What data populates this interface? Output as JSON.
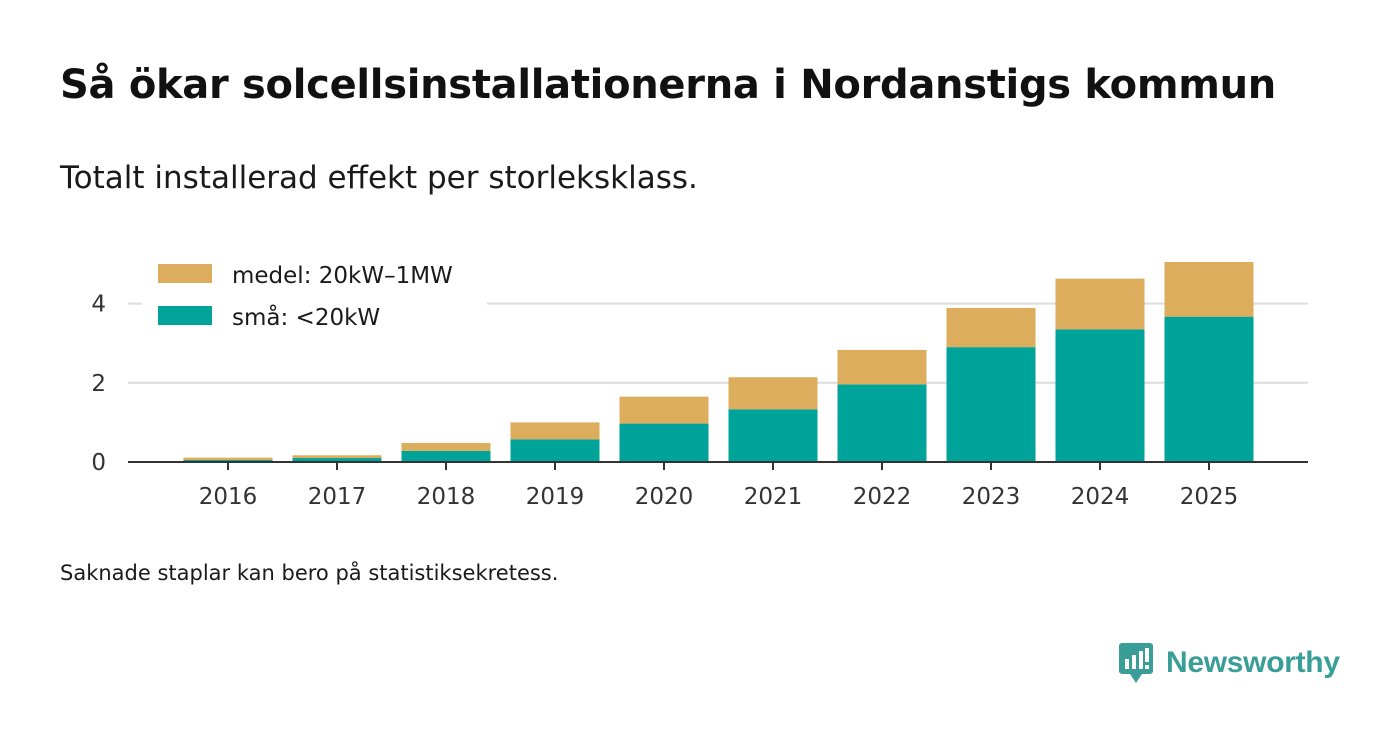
{
  "title": "Så ökar solcellsinstallationerna i Nordanstigs kommun",
  "subtitle": "Totalt installerad effekt per storleksklass.",
  "footnote": "Saknade staplar kan bero på statistiksekretess.",
  "brand": {
    "name": "Newsworthy",
    "icon": "newsworthy-logo-icon",
    "color": "#3a9e98"
  },
  "chart_data": {
    "type": "bar",
    "stacked": true,
    "categories": [
      "2016",
      "2017",
      "2018",
      "2019",
      "2020",
      "2021",
      "2022",
      "2023",
      "2024",
      "2025"
    ],
    "series": [
      {
        "name": "små: <20kW",
        "color": "#00a39a",
        "values": [
          0.05,
          0.1,
          0.28,
          0.57,
          0.97,
          1.33,
          1.96,
          2.9,
          3.35,
          3.67
        ]
      },
      {
        "name": "medel: 20kW–1MW",
        "color": "#dbad5c",
        "values": [
          0.06,
          0.07,
          0.2,
          0.43,
          0.68,
          0.81,
          0.87,
          0.99,
          1.28,
          1.38
        ]
      }
    ],
    "legend_order": [
      "medel: 20kW–1MW",
      "små: <20kW"
    ],
    "legend_position": "top-left",
    "yticks": [
      0,
      2,
      4
    ],
    "ylim": [
      0,
      5.05
    ],
    "xlabel": "",
    "ylabel": "",
    "grid": true
  }
}
